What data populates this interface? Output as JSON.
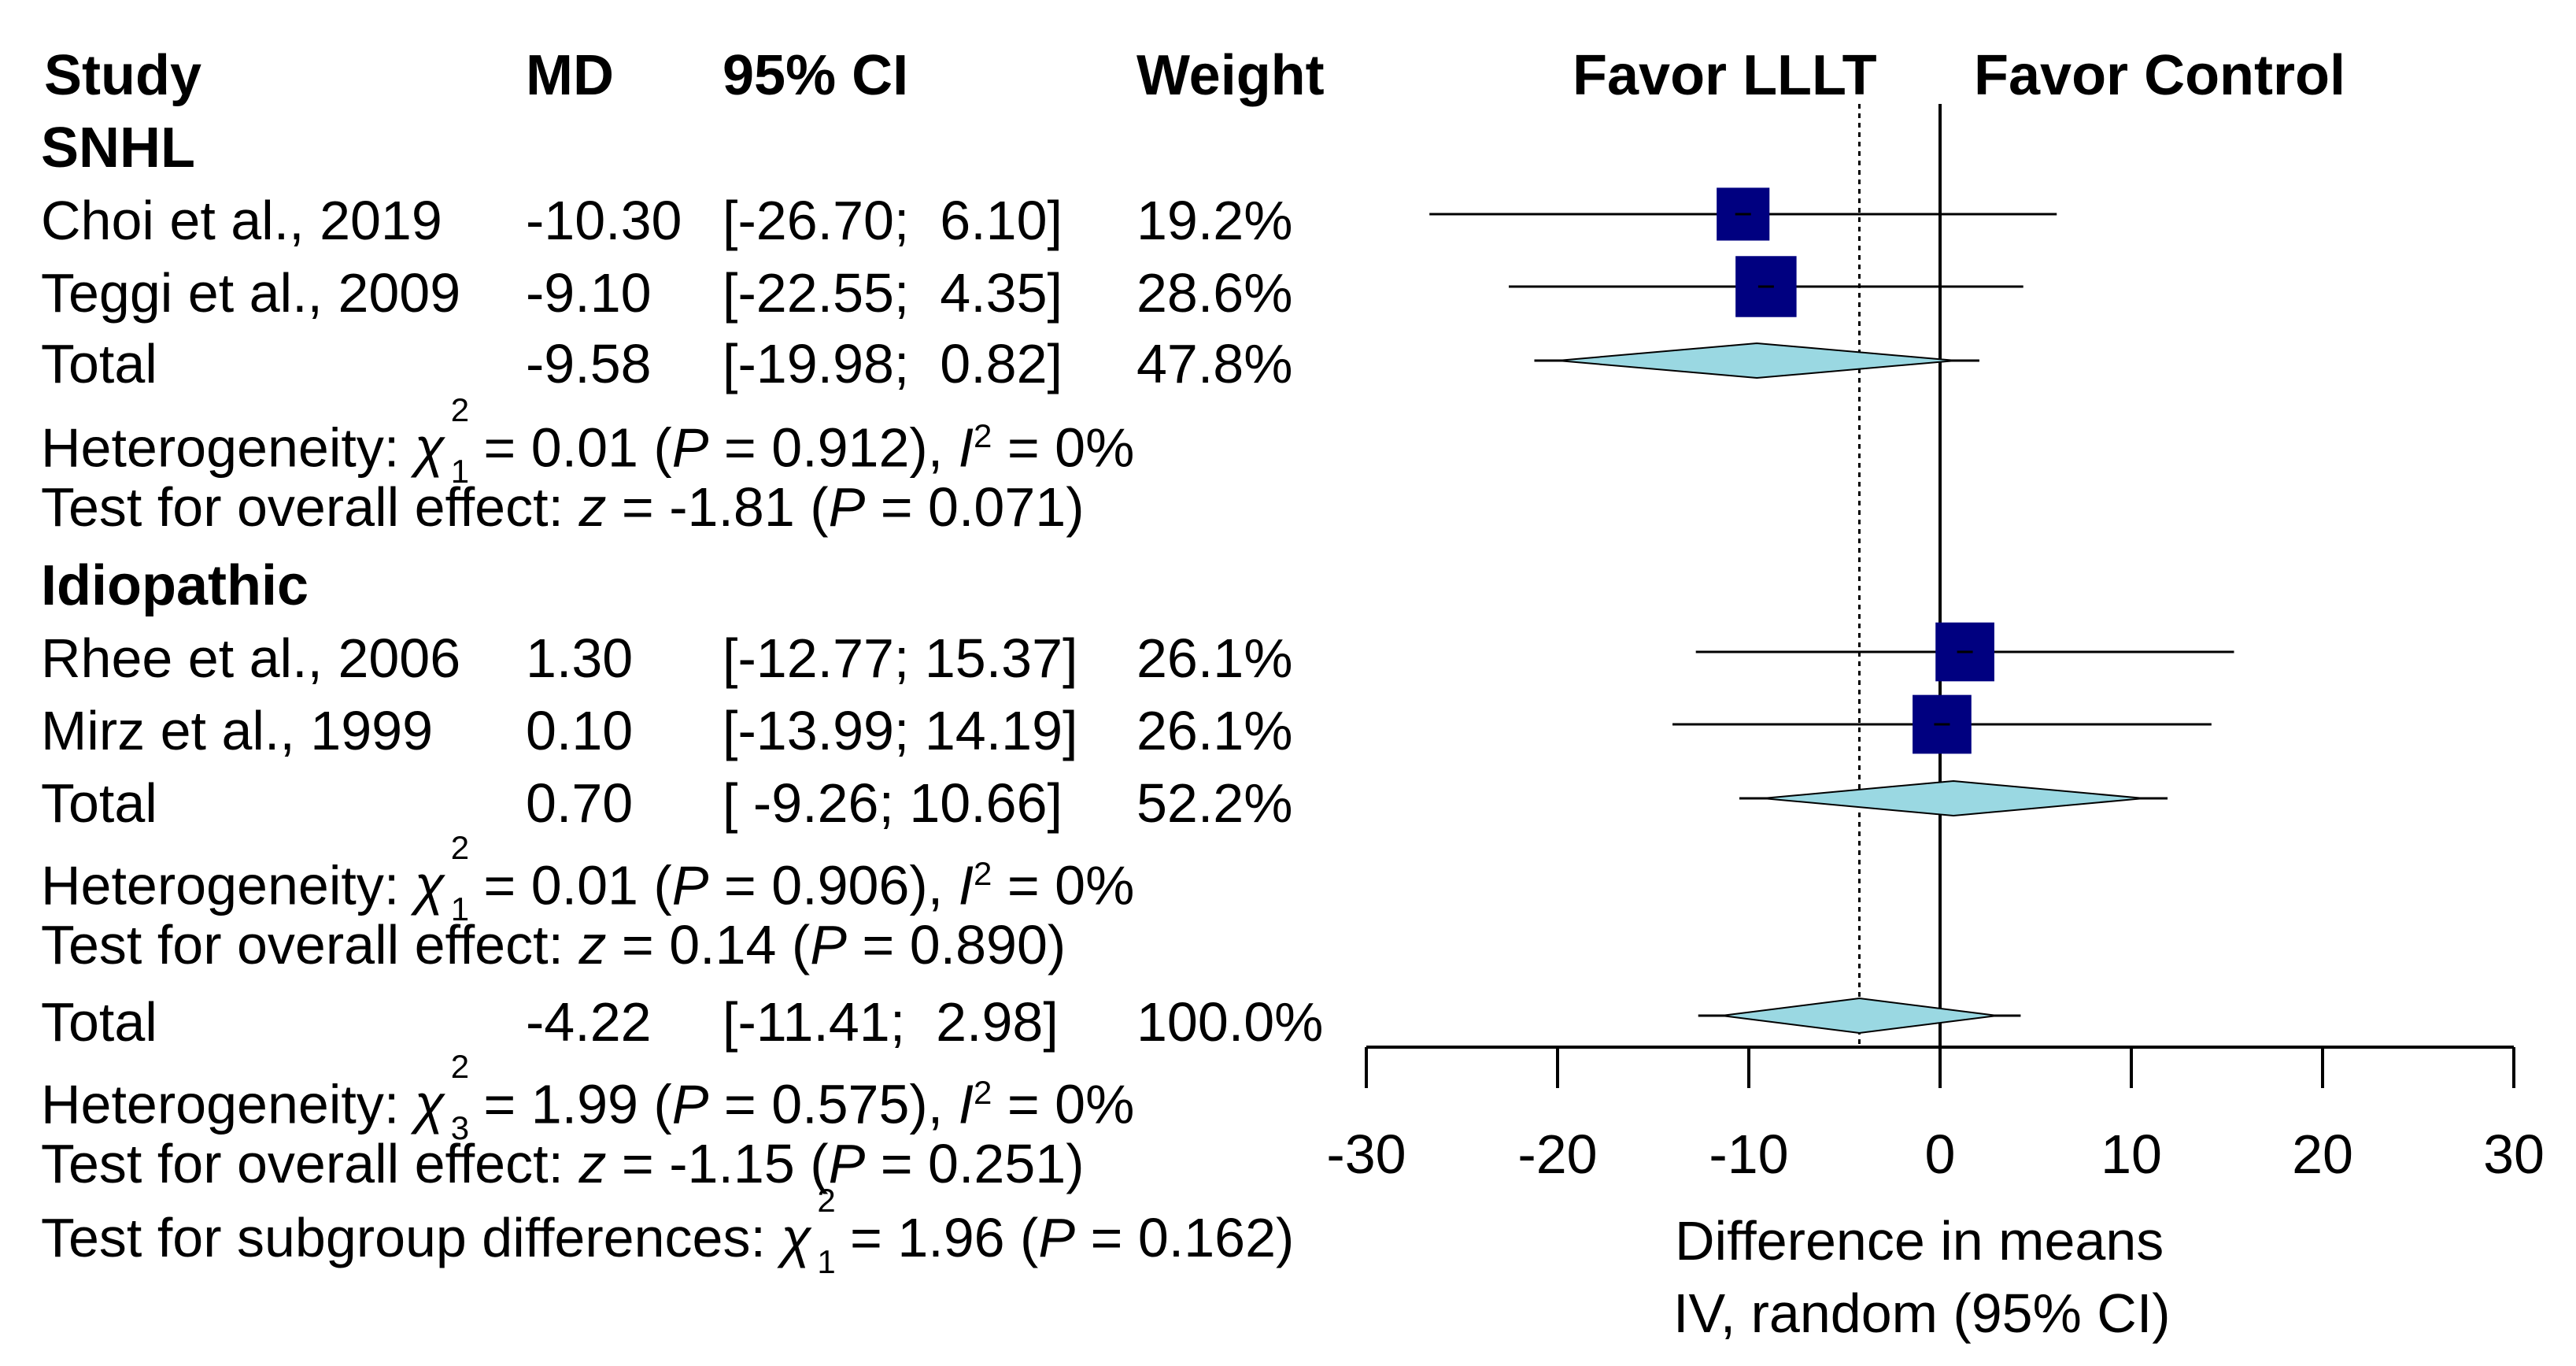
{
  "columns": {
    "study": "Study",
    "md": "MD",
    "ci": "95% CI",
    "weight": "Weight"
  },
  "favor": {
    "left": "Favor LLLT",
    "right": "Favor Control"
  },
  "subgroups": [
    {
      "name": "SNHL",
      "studies": [
        {
          "study": "Choi et al., 2019",
          "md": "-10.30",
          "ci": "[-26.70;  6.10]",
          "weight": "19.2%"
        },
        {
          "study": "Teggi et al., 2009",
          "md": "-9.10",
          "ci": "[-22.55;  4.35]",
          "weight": "28.6%"
        }
      ],
      "total": {
        "label": "Total",
        "md": "-9.58",
        "ci": "[-19.98;  0.82]",
        "weight": "47.8%"
      },
      "heterogeneity": {
        "prefix": "Heterogeneity: ",
        "chi_sup": "2",
        "chi_sub": "1",
        "a": " = 0.01 (",
        "p": "P",
        "b": " = 0.912), ",
        "i": "I",
        "i_sup": "2",
        "c": " = 0%"
      },
      "overall": {
        "prefix": "Test for overall effect: ",
        "z": "z",
        "a": " = -1.81 (",
        "p": "P",
        "b": " = 0.071)"
      }
    },
    {
      "name": "Idiopathic",
      "studies": [
        {
          "study": "Rhee et al., 2006",
          "md": "1.30",
          "ci": "[-12.77; 15.37]",
          "weight": "26.1%"
        },
        {
          "study": "Mirz et al., 1999",
          "md": "0.10",
          "ci": "[-13.99; 14.19]",
          "weight": "26.1%"
        }
      ],
      "total": {
        "label": "Total",
        "md": "0.70",
        "ci": "[ -9.26; 10.66]",
        "weight": "52.2%"
      },
      "heterogeneity": {
        "prefix": "Heterogeneity: ",
        "chi_sup": "2",
        "chi_sub": "1",
        "a": " = 0.01 (",
        "p": "P",
        "b": " = 0.906), ",
        "i": "I",
        "i_sup": "2",
        "c": " = 0%"
      },
      "overall": {
        "prefix": "Test for overall effect: ",
        "z": "z",
        "a": " = 0.14 (",
        "p": "P",
        "b": " = 0.890)"
      }
    }
  ],
  "overall_total": {
    "label": "Total",
    "md": "-4.22",
    "ci": "[-11.41;  2.98]",
    "weight": "100.0%"
  },
  "overall_heterogeneity": {
    "prefix": "Heterogeneity: ",
    "chi_sup": "2",
    "chi_sub": "3",
    "a": " = 1.99 (",
    "p": "P",
    "b": " = 0.575), ",
    "i": "I",
    "i_sup": "2",
    "c": " = 0%"
  },
  "overall_effect": {
    "prefix": "Test for overall effect: ",
    "z": "z",
    "a": " = -1.15 (",
    "p": "P",
    "b": " = 0.251)"
  },
  "subgroup_diff": {
    "prefix": "Test for subgroup differences: ",
    "chi_sup": "2",
    "chi_sub": "1",
    "a": " = 1.96 (",
    "p": "P",
    "b": " = 0.162)"
  },
  "axis": {
    "title_line1": "Difference in means",
    "title_line2": "IV, random (95% CI)"
  },
  "colors": {
    "square": "#000080",
    "diamond": "#9ad8e2",
    "line": "#000000"
  },
  "chart_data": {
    "type": "forest",
    "xlim": [
      -30,
      30
    ],
    "ticks": [
      -30,
      -20,
      -10,
      0,
      10,
      20,
      30
    ],
    "tick_labels": [
      "-30",
      "-20",
      "-10",
      "0",
      "10",
      "20",
      "30"
    ],
    "xlabel": "Difference in means / IV, random (95% CI)",
    "null_line": 0,
    "overall_effect_line": -4.22,
    "studies": [
      {
        "name": "Choi et al., 2019",
        "md": -10.3,
        "lo": -26.7,
        "hi": 6.1,
        "weight": 19.2
      },
      {
        "name": "Teggi et al., 2009",
        "md": -9.1,
        "lo": -22.55,
        "hi": 4.35,
        "weight": 28.6
      },
      {
        "name": "Rhee et al., 2006",
        "md": 1.3,
        "lo": -12.77,
        "hi": 15.37,
        "weight": 26.1
      },
      {
        "name": "Mirz et al., 1999",
        "md": 0.1,
        "lo": -13.99,
        "hi": 14.19,
        "weight": 26.1
      }
    ],
    "pooled": [
      {
        "name": "SNHL total",
        "md": -9.58,
        "lo": -19.98,
        "hi": 0.82,
        "weight": 47.8
      },
      {
        "name": "Idiopathic total",
        "md": 0.7,
        "lo": -9.26,
        "hi": 10.66,
        "weight": 52.2
      },
      {
        "name": "Overall total",
        "md": -4.22,
        "lo": -11.41,
        "hi": 2.98,
        "weight": 100.0
      }
    ]
  }
}
